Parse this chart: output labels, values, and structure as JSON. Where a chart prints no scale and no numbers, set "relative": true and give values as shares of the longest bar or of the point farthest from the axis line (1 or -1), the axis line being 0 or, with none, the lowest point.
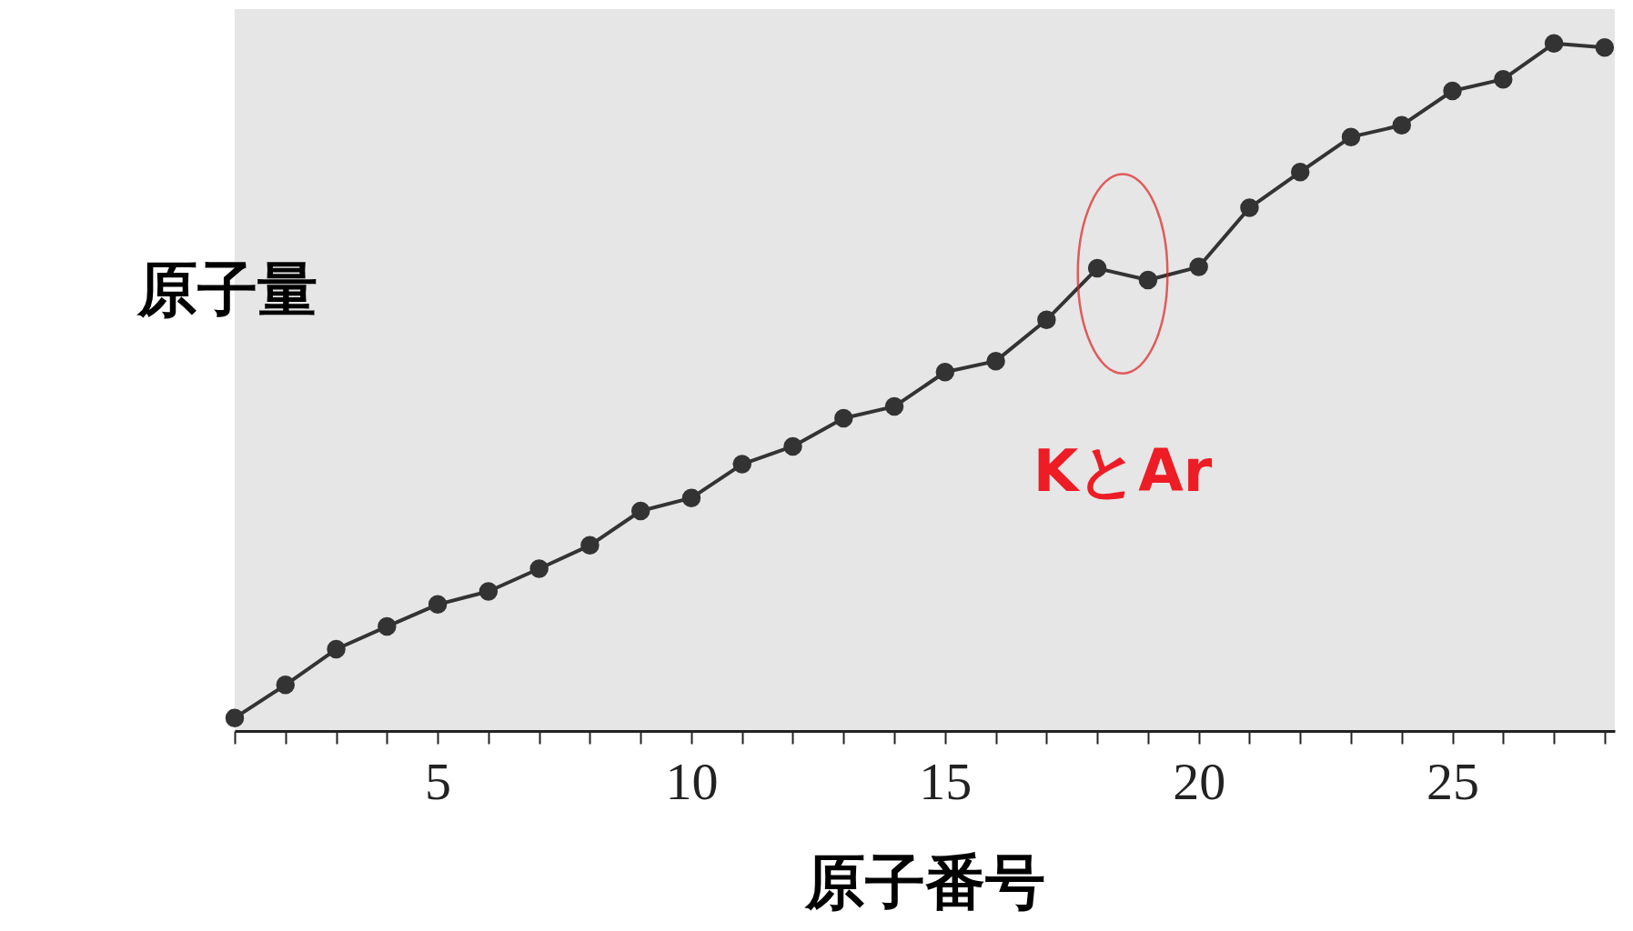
{
  "chart_data": {
    "type": "line",
    "relative": true,
    "xlabel": "原子番号",
    "ylabel": "原子量",
    "x": [
      1,
      2,
      3,
      4,
      5,
      6,
      7,
      8,
      9,
      10,
      11,
      12,
      13,
      14,
      15,
      16,
      17,
      18,
      19,
      20,
      21,
      22,
      23,
      24,
      25,
      26,
      27,
      28
    ],
    "series": [
      {
        "color": "#333333",
        "values": [
          0.019,
          0.067,
          0.119,
          0.152,
          0.184,
          0.203,
          0.236,
          0.27,
          0.32,
          0.339,
          0.388,
          0.414,
          0.455,
          0.472,
          0.522,
          0.538,
          0.598,
          0.673,
          0.656,
          0.675,
          0.761,
          0.813,
          0.864,
          0.881,
          0.931,
          0.948,
          1,
          0.994
        ]
      }
    ],
    "xlim": [
      1,
      28.2
    ],
    "xticks": [
      {
        "value": 1,
        "label": null
      },
      {
        "value": 2,
        "label": null
      },
      {
        "value": 3,
        "label": null
      },
      {
        "value": 4,
        "label": null
      },
      5,
      {
        "value": 6,
        "label": null
      },
      {
        "value": 7,
        "label": null
      },
      {
        "value": 8,
        "label": null
      },
      {
        "value": 9,
        "label": null
      },
      10,
      {
        "value": 11,
        "label": null
      },
      {
        "value": 12,
        "label": null
      },
      {
        "value": 13,
        "label": null
      },
      {
        "value": 14,
        "label": null
      },
      15,
      {
        "value": 16,
        "label": null
      },
      {
        "value": 17,
        "label": null
      },
      {
        "value": 18,
        "label": null
      },
      {
        "value": 19,
        "label": null
      },
      20,
      {
        "value": 21,
        "label": null
      },
      {
        "value": 22,
        "label": null
      },
      {
        "value": 23,
        "label": null
      },
      {
        "value": 24,
        "label": null
      },
      25,
      {
        "value": 26,
        "label": null
      },
      {
        "value": 27,
        "label": null
      },
      {
        "value": 28,
        "label": null
      }
    ],
    "annotations": [
      {
        "text": "KとAr",
        "x": 18.5,
        "y": 0.665
      }
    ],
    "marker": "circle",
    "line_style": "solid",
    "grid": false
  }
}
